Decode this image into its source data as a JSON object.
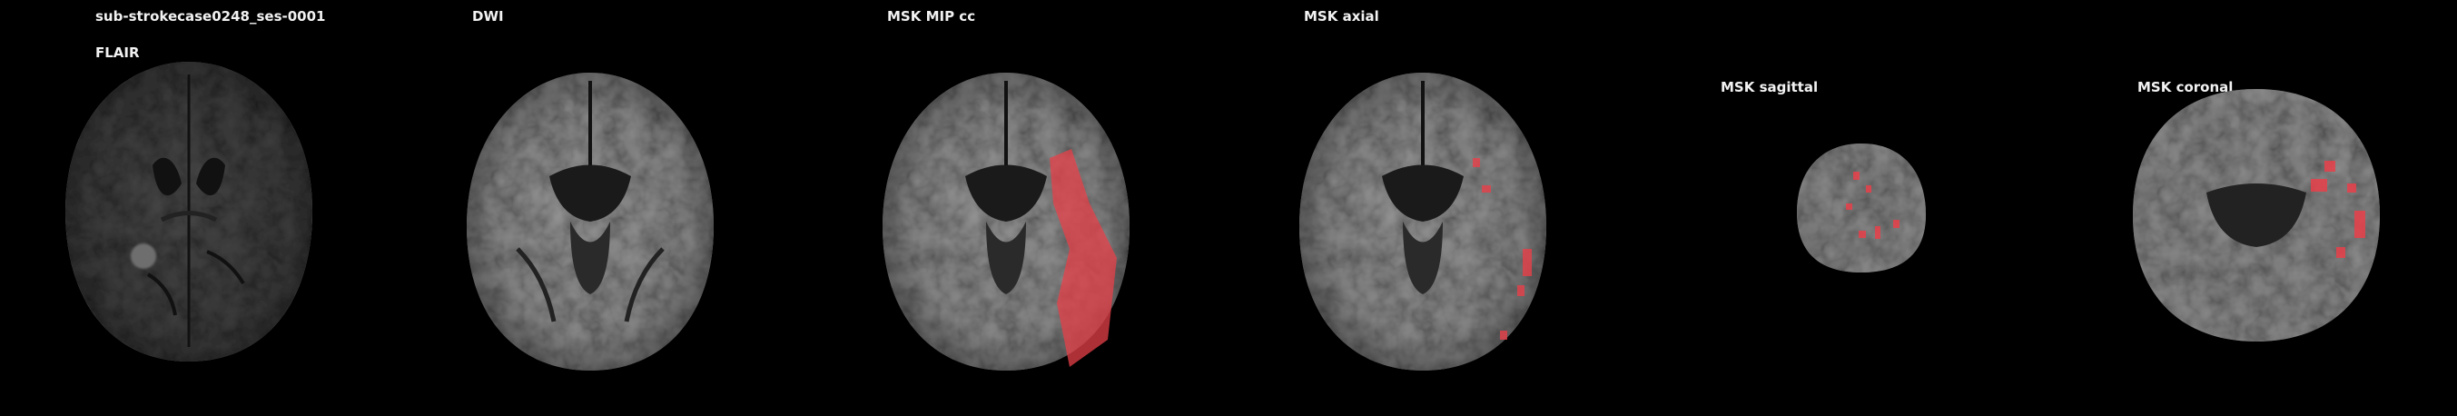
{
  "subject_id": "sub-strokecase0248_ses-0001",
  "panels": [
    {
      "key": "flair",
      "title": "FLAIR"
    },
    {
      "key": "dwi",
      "title": "DWI"
    },
    {
      "key": "mip",
      "title": "MSK MIP cc"
    },
    {
      "key": "axial",
      "title": "MSK axial"
    },
    {
      "key": "sagittal",
      "title": "MSK sagittal"
    },
    {
      "key": "coronal",
      "title": "MSK coronal"
    }
  ],
  "colors": {
    "background": "#000000",
    "mask": "#e8404a",
    "label": "#f2f2f2"
  }
}
